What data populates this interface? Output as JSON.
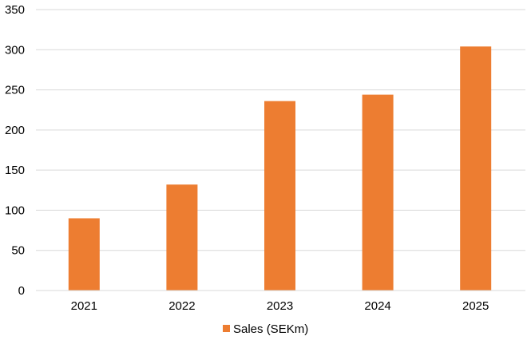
{
  "chart_data": {
    "type": "bar",
    "categories": [
      "2021",
      "2022",
      "2023",
      "2024",
      "2025"
    ],
    "series": [
      {
        "name": "Sales (SEKm)",
        "values": [
          90,
          132,
          236,
          244,
          304
        ],
        "color": "#ED7D31"
      }
    ],
    "ylim": [
      0,
      350
    ],
    "yticks": [
      "0",
      "50",
      "100",
      "150",
      "200",
      "250",
      "300",
      "350"
    ],
    "grid": true,
    "legend": "bottom-center",
    "title": "",
    "xlabel": "",
    "ylabel": ""
  }
}
